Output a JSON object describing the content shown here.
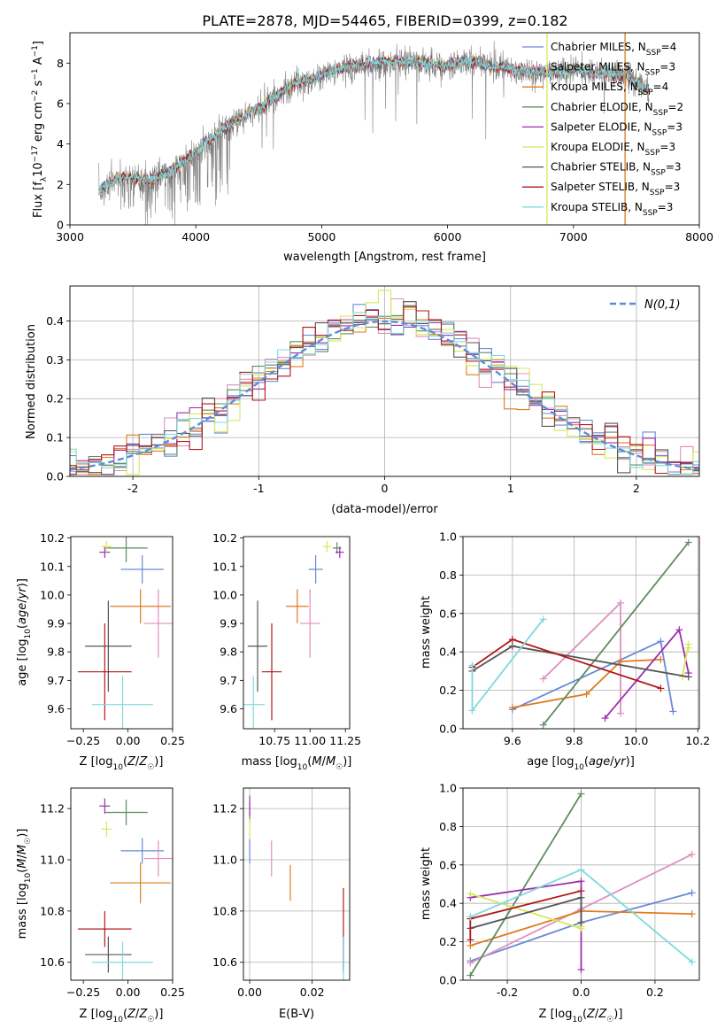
{
  "figure_title": "PLATE=2878, MJD=54465, FIBERID=0399, z=0.182",
  "colors": {
    "spectrum_data": "#808080",
    "chab_miles": "#6a8ad6",
    "salp_miles": "#e08fbf",
    "kroupa_miles": "#e07b1f",
    "chab_elodie": "#5e8c5e",
    "salp_elodie": "#9b2fae",
    "kroupa_elodie": "#d6e85a",
    "chab_stelib": "#555555",
    "salp_stelib": "#b21818",
    "kroupa_stelib": "#7fd8dc",
    "normal_curve": "#5b8ed6"
  },
  "legend_labels": [
    "Chabrier MILES, N_SSP=4",
    "Salpeter MILES, N_SSP=3",
    "Kroupa MILES, N_SSP=4",
    "Chabrier ELODIE, N_SSP=2",
    "Salpeter ELODIE, N_SSP=3",
    "Kroupa ELODIE, N_SSP=3",
    "Chabrier STELIB, N_SSP=3",
    "Salpeter STELIB, N_SSP=3",
    "Kroupa STELIB, N_SSP=3"
  ],
  "chart_data": [
    {
      "id": "spectrum",
      "type": "line",
      "xlabel": "wavelength [Angstrom, rest frame]",
      "ylabel": "Flux [f_λ 10^-17 erg cm^-2 s^-1 A^-1]",
      "xlim": [
        3000,
        8000
      ],
      "ylim": [
        0,
        9.5
      ],
      "xticks": [
        3000,
        4000,
        5000,
        6000,
        7000,
        8000
      ],
      "yticks": [
        0,
        2,
        4,
        6,
        8
      ],
      "legend_position": "top-right",
      "continuum": {
        "x": [
          3230,
          3400,
          3600,
          3800,
          4000,
          4200,
          4400,
          4600,
          4800,
          5000,
          5200,
          5400,
          5600,
          5800,
          6000,
          6200,
          6400,
          6600,
          6800,
          7000,
          7200,
          7400,
          7600
        ],
        "y": [
          1.7,
          2.4,
          2.2,
          2.6,
          3.6,
          4.7,
          5.4,
          6.2,
          7.0,
          7.4,
          7.8,
          8.0,
          8.1,
          8.0,
          7.9,
          8.1,
          7.8,
          7.6,
          7.5,
          7.7,
          7.5,
          7.4,
          6.7
        ]
      },
      "vertical_lines": [
        {
          "x": 6790,
          "series": "kroupa_elodie"
        },
        {
          "x": 7410,
          "series": "kroupa_miles"
        }
      ]
    },
    {
      "id": "residuals",
      "type": "line",
      "xlabel": "(data-model)/error",
      "ylabel": "Normed distribution",
      "xlim": [
        -2.5,
        2.5
      ],
      "ylim": [
        0,
        0.49
      ],
      "xticks": [
        -2,
        -1,
        0,
        1,
        2
      ],
      "yticks": [
        0.0,
        0.1,
        0.2,
        0.3,
        0.4
      ],
      "legend": "N(0,1)",
      "legend_position": "top-right",
      "grid": true,
      "bin_width": 0.1
    },
    {
      "id": "age_vs_Z",
      "type": "scatter",
      "xlabel": "Z [log10(Z/Z☉)]",
      "ylabel": "age  [log10(age/yr)]",
      "xlim": [
        -0.32,
        0.25
      ],
      "ylim": [
        9.53,
        10.205
      ],
      "xticks": [
        -0.25,
        0.0,
        0.25
      ],
      "yticks": [
        9.6,
        9.7,
        9.8,
        9.9,
        10.0,
        10.1,
        10.2
      ],
      "points": [
        {
          "series": "chab_miles",
          "x": 0.08,
          "y": 10.09,
          "xerr": 0.12,
          "yerr": 0.05
        },
        {
          "series": "salp_miles",
          "x": 0.17,
          "y": 9.9,
          "xerr": 0.08,
          "yerr": 0.12
        },
        {
          "series": "kroupa_miles",
          "x": 0.07,
          "y": 9.96,
          "xerr": 0.17,
          "yerr": 0.06
        },
        {
          "series": "chab_elodie",
          "x": -0.01,
          "y": 10.165,
          "xerr": 0.12,
          "yerr": 0.05
        },
        {
          "series": "salp_elodie",
          "x": -0.13,
          "y": 10.15,
          "xerr": 0.03,
          "yerr": 0.02
        },
        {
          "series": "kroupa_elodie",
          "x": -0.12,
          "y": 10.17,
          "xerr": 0.03,
          "yerr": 0.02
        },
        {
          "series": "chab_stelib",
          "x": -0.11,
          "y": 9.82,
          "xerr": 0.13,
          "yerr": 0.16
        },
        {
          "series": "salp_stelib",
          "x": -0.13,
          "y": 9.73,
          "xerr": 0.15,
          "yerr": 0.17
        },
        {
          "series": "kroupa_stelib",
          "x": -0.03,
          "y": 9.615,
          "xerr": 0.17,
          "yerr": 0.1
        }
      ]
    },
    {
      "id": "age_vs_mass",
      "type": "scatter",
      "xlabel": "mass [log10(M/M☉)]",
      "ylabel": "",
      "xlim": [
        10.53,
        11.28
      ],
      "ylim": [
        9.53,
        10.205
      ],
      "xticks": [
        10.75,
        11.0,
        11.25
      ],
      "yticks": [
        9.6,
        9.7,
        9.8,
        9.9,
        10.0,
        10.1,
        10.2
      ],
      "points": [
        {
          "series": "chab_miles",
          "x": 11.04,
          "y": 10.09,
          "xerr": 0.05,
          "yerr": 0.05
        },
        {
          "series": "salp_miles",
          "x": 11.0,
          "y": 9.9,
          "xerr": 0.07,
          "yerr": 0.12
        },
        {
          "series": "kroupa_miles",
          "x": 10.91,
          "y": 9.96,
          "xerr": 0.08,
          "yerr": 0.06
        },
        {
          "series": "chab_elodie",
          "x": 11.19,
          "y": 10.165,
          "xerr": 0.03,
          "yerr": 0.02
        },
        {
          "series": "salp_elodie",
          "x": 11.21,
          "y": 10.15,
          "xerr": 0.03,
          "yerr": 0.02
        },
        {
          "series": "kroupa_elodie",
          "x": 11.12,
          "y": 10.17,
          "xerr": 0.03,
          "yerr": 0.02
        },
        {
          "series": "chab_stelib",
          "x": 10.63,
          "y": 9.82,
          "xerr": 0.07,
          "yerr": 0.16
        },
        {
          "series": "salp_stelib",
          "x": 10.73,
          "y": 9.73,
          "xerr": 0.07,
          "yerr": 0.17
        },
        {
          "series": "kroupa_stelib",
          "x": 10.6,
          "y": 9.615,
          "xerr": 0.08,
          "yerr": 0.1
        }
      ]
    },
    {
      "id": "weight_vs_age",
      "type": "line",
      "xlabel": "age  [log10(age/yr)]",
      "ylabel": "mass weight",
      "xlim": [
        9.44,
        10.205
      ],
      "ylim": [
        0,
        1.0
      ],
      "xticks": [
        9.6,
        9.8,
        10.0,
        10.2
      ],
      "yticks": [
        0.0,
        0.2,
        0.4,
        0.6,
        0.8,
        1.0
      ],
      "grid": true,
      "series": [
        {
          "name": "chab_miles",
          "x": [
            9.6,
            10.08,
            10.12
          ],
          "y": [
            0.1,
            0.455,
            0.09
          ]
        },
        {
          "name": "salp_miles",
          "x": [
            9.7,
            9.95,
            9.95
          ],
          "y": [
            0.26,
            0.655,
            0.08
          ]
        },
        {
          "name": "kroupa_miles",
          "x": [
            9.6,
            9.84,
            9.95,
            10.08
          ],
          "y": [
            0.11,
            0.18,
            0.35,
            0.36
          ]
        },
        {
          "name": "chab_elodie",
          "x": [
            9.7,
            10.17
          ],
          "y": [
            0.02,
            0.97
          ]
        },
        {
          "name": "salp_elodie",
          "x": [
            9.9,
            10.14,
            10.17
          ],
          "y": [
            0.055,
            0.515,
            0.29
          ]
        },
        {
          "name": "kroupa_elodie",
          "x": [
            10.15,
            10.17,
            10.17
          ],
          "y": [
            0.27,
            0.44,
            0.42
          ]
        },
        {
          "name": "chab_stelib",
          "x": [
            9.47,
            9.6,
            10.17
          ],
          "y": [
            0.3,
            0.43,
            0.27
          ]
        },
        {
          "name": "salp_stelib",
          "x": [
            9.47,
            9.6,
            10.08
          ],
          "y": [
            0.32,
            0.465,
            0.21
          ]
        },
        {
          "name": "kroupa_stelib",
          "x": [
            9.47,
            9.47,
            9.7
          ],
          "y": [
            0.33,
            0.095,
            0.57
          ]
        }
      ]
    },
    {
      "id": "mass_vs_Z",
      "type": "scatter",
      "xlabel": "Z [log10(Z/Z☉)]",
      "ylabel": "mass [log10(M/M☉)]",
      "xlim": [
        -0.32,
        0.25
      ],
      "ylim": [
        10.53,
        11.28
      ],
      "xticks": [
        -0.25,
        0.0,
        0.25
      ],
      "yticks": [
        10.6,
        10.8,
        11.0,
        11.2
      ],
      "points": [
        {
          "series": "chab_miles",
          "x": 0.08,
          "y": 11.035,
          "xerr": 0.12,
          "yerr": 0.05
        },
        {
          "series": "salp_miles",
          "x": 0.17,
          "y": 11.005,
          "xerr": 0.08,
          "yerr": 0.07
        },
        {
          "series": "kroupa_miles",
          "x": 0.07,
          "y": 10.91,
          "xerr": 0.17,
          "yerr": 0.08
        },
        {
          "series": "chab_elodie",
          "x": -0.01,
          "y": 11.185,
          "xerr": 0.12,
          "yerr": 0.05
        },
        {
          "series": "salp_elodie",
          "x": -0.13,
          "y": 11.21,
          "xerr": 0.03,
          "yerr": 0.03
        },
        {
          "series": "kroupa_elodie",
          "x": -0.12,
          "y": 11.12,
          "xerr": 0.03,
          "yerr": 0.03
        },
        {
          "series": "chab_stelib",
          "x": -0.11,
          "y": 10.63,
          "xerr": 0.13,
          "yerr": 0.07
        },
        {
          "series": "salp_stelib",
          "x": -0.13,
          "y": 10.73,
          "xerr": 0.15,
          "yerr": 0.07
        },
        {
          "series": "kroupa_stelib",
          "x": -0.03,
          "y": 10.6,
          "xerr": 0.17,
          "yerr": 0.08
        }
      ]
    },
    {
      "id": "mass_vs_ebv",
      "type": "scatter",
      "xlabel": "E(B-V)",
      "ylabel": "",
      "xlim": [
        -0.002,
        0.032
      ],
      "ylim": [
        10.53,
        11.28
      ],
      "xticks": [
        0.0,
        0.02
      ],
      "yticks": [
        10.6,
        10.8,
        11.0,
        11.2
      ],
      "grid": true,
      "points": [
        {
          "series": "chab_miles",
          "x": 0.0,
          "y": 11.035,
          "xerr": 0.0,
          "yerr": 0.05
        },
        {
          "series": "salp_miles",
          "x": 0.007,
          "y": 11.005,
          "xerr": 0.0,
          "yerr": 0.07
        },
        {
          "series": "kroupa_miles",
          "x": 0.013,
          "y": 10.91,
          "xerr": 0.0,
          "yerr": 0.07
        },
        {
          "series": "chab_elodie",
          "x": 0.0,
          "y": 11.185,
          "xerr": 0.0,
          "yerr": 0.04
        },
        {
          "series": "salp_elodie",
          "x": 0.0,
          "y": 11.21,
          "xerr": 0.0,
          "yerr": 0.04
        },
        {
          "series": "kroupa_elodie",
          "x": 0.0,
          "y": 11.12,
          "xerr": 0.0,
          "yerr": 0.04
        },
        {
          "series": "chab_stelib",
          "x": 0.03,
          "y": 10.63,
          "xerr": 0.0,
          "yerr": 0.07
        },
        {
          "series": "salp_stelib",
          "x": 0.03,
          "y": 10.73,
          "xerr": 0.0,
          "yerr": 0.16
        },
        {
          "series": "kroupa_stelib",
          "x": 0.03,
          "y": 10.6,
          "xerr": 0.0,
          "yerr": 0.1
        }
      ]
    },
    {
      "id": "weight_vs_Z",
      "type": "line",
      "xlabel": "Z [log10(Z/Z☉)]",
      "ylabel": "mass weight",
      "xlim": [
        -0.32,
        0.32
      ],
      "ylim": [
        0,
        1.0
      ],
      "xticks": [
        -0.2,
        0.0,
        0.2
      ],
      "yticks": [
        0.0,
        0.2,
        0.4,
        0.6,
        0.8,
        1.0
      ],
      "grid": true,
      "series": [
        {
          "name": "chab_miles",
          "x": [
            -0.3,
            0.0,
            0.3
          ],
          "y": [
            0.1,
            0.3,
            0.455
          ]
        },
        {
          "name": "salp_miles",
          "x": [
            -0.3,
            0.0,
            0.3
          ],
          "y": [
            0.09,
            0.37,
            0.655
          ]
        },
        {
          "name": "kroupa_miles",
          "x": [
            -0.3,
            0.0,
            0.3
          ],
          "y": [
            0.18,
            0.36,
            0.345
          ]
        },
        {
          "name": "chab_elodie",
          "x": [
            -0.3,
            0.0
          ],
          "y": [
            0.025,
            0.97
          ]
        },
        {
          "name": "salp_elodie",
          "x": [
            -0.3,
            0.0,
            0.0
          ],
          "y": [
            0.43,
            0.515,
            0.055
          ]
        },
        {
          "name": "kroupa_elodie",
          "x": [
            -0.3,
            0.0,
            0.0
          ],
          "y": [
            0.45,
            0.27,
            0.28
          ]
        },
        {
          "name": "chab_stelib",
          "x": [
            -0.3,
            0.0,
            0.0
          ],
          "y": [
            0.27,
            0.43,
            0.3
          ]
        },
        {
          "name": "salp_stelib",
          "x": [
            -0.3,
            -0.3,
            0.0
          ],
          "y": [
            0.21,
            0.32,
            0.465
          ]
        },
        {
          "name": "kroupa_stelib",
          "x": [
            -0.3,
            0.0,
            0.3
          ],
          "y": [
            0.33,
            0.575,
            0.095
          ]
        }
      ]
    }
  ]
}
